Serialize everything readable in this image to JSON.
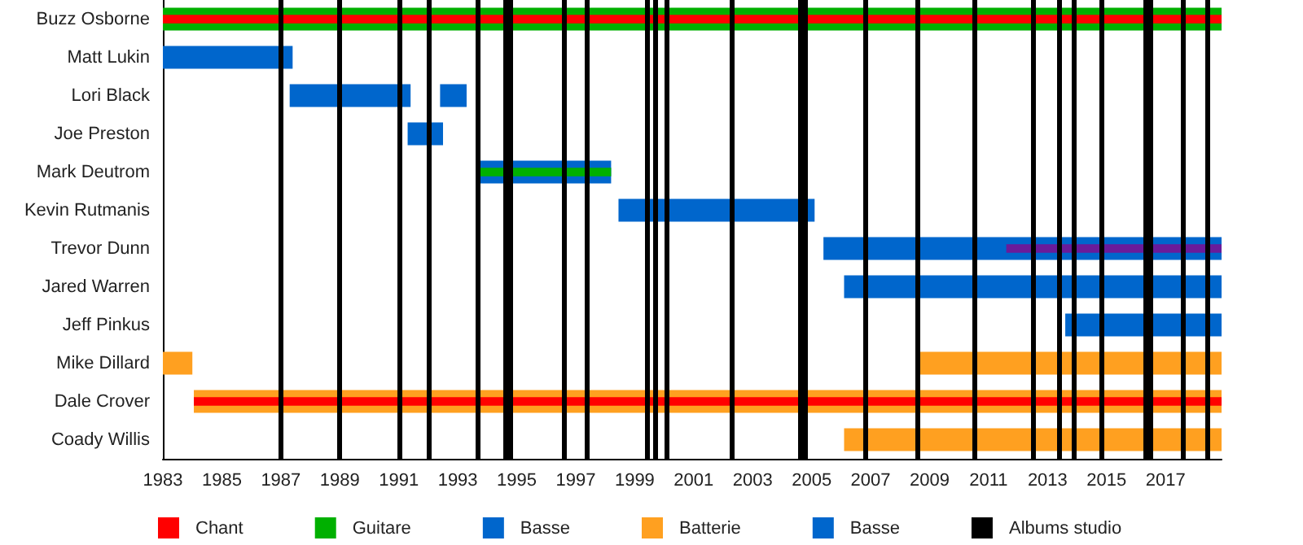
{
  "chart_data": {
    "type": "bar",
    "orientation": "horizontal",
    "legend": "bottom",
    "categories": [
      "Buzz Osborne",
      "Matt Lukin",
      "Lori Black",
      "Joe Preston",
      "Mark Deutrom",
      "Kevin Rutmanis",
      "Trevor Dunn",
      "Jared Warren",
      "Jeff Pinkus",
      "Mike Dillard",
      "Dale Crover",
      "Coady Willis"
    ],
    "xlim": [
      1983,
      2018.9
    ],
    "xticks": [
      1983,
      1985,
      1987,
      1989,
      1991,
      1993,
      1995,
      1997,
      1999,
      2001,
      2003,
      2005,
      2007,
      2009,
      2011,
      2013,
      2015,
      2017
    ],
    "series": [
      {
        "name": "Chant",
        "color": "#ff0000",
        "base": [
          1983,
          null,
          null,
          null,
          null,
          null,
          null,
          null,
          null,
          null,
          1984.05,
          null
        ],
        "values": [
          35.9,
          null,
          null,
          null,
          null,
          null,
          null,
          null,
          null,
          null,
          34.85,
          null
        ]
      },
      {
        "name": "Guitare",
        "color": "#00b000",
        "base": [
          1983,
          null,
          null,
          null,
          1993.65,
          null,
          null,
          null,
          null,
          null,
          null,
          null
        ],
        "values": [
          35.9,
          null,
          null,
          null,
          4.55,
          null,
          null,
          null,
          null,
          null,
          null,
          null
        ]
      },
      {
        "name": "Basse",
        "color": "#0066cc",
        "base": [
          null,
          1983,
          1987.3,
          1991.3,
          1993.65,
          1998.45,
          null,
          2006.1,
          2013.6,
          null,
          null,
          null
        ],
        "values": [
          null,
          4.4,
          4.1,
          1.2,
          4.55,
          6.65,
          null,
          12.8,
          5.3,
          null,
          null,
          null
        ]
      },
      {
        "name": "Batterie",
        "color": "#ffa020",
        "base": [
          null,
          null,
          null,
          null,
          null,
          null,
          null,
          null,
          null,
          1983,
          1984.05,
          2006.1
        ],
        "values": [
          null,
          null,
          null,
          null,
          null,
          null,
          null,
          null,
          null,
          1.0,
          34.85,
          12.8
        ]
      },
      {
        "name": "Basse",
        "color": "#0066cc",
        "base": [
          null,
          null,
          1992.4,
          null,
          null,
          null,
          null,
          null,
          null,
          null,
          null,
          null
        ],
        "values": [
          null,
          null,
          0.9,
          null,
          null,
          null,
          null,
          null,
          null,
          null,
          null,
          null
        ]
      },
      {
        "name": "Albums studio",
        "color": "#000000",
        "base": [
          null,
          null,
          null,
          null,
          null,
          null,
          null,
          null,
          null,
          null,
          null,
          null
        ],
        "values": [
          null,
          null,
          null,
          null,
          null,
          null,
          null,
          null,
          null,
          null,
          null,
          null
        ]
      },
      {
        "color": "#6a1b9a",
        "base": [
          null,
          null,
          null,
          null,
          null,
          null,
          2011.6,
          null,
          null,
          null,
          null,
          null
        ],
        "values": [
          null,
          null,
          null,
          null,
          null,
          null,
          7.3,
          null,
          null,
          null,
          null,
          null
        ]
      },
      {
        "color": "#0066cc",
        "base": [
          null,
          null,
          null,
          null,
          null,
          null,
          2005.4,
          null,
          null,
          null,
          null,
          null
        ],
        "values": [
          null,
          null,
          null,
          null,
          null,
          null,
          13.5,
          null,
          null,
          null,
          null,
          null
        ]
      },
      {
        "color": "#ffa020",
        "base": [
          null,
          null,
          null,
          null,
          null,
          null,
          null,
          null,
          null,
          2008.55,
          null,
          null
        ],
        "values": [
          null,
          null,
          null,
          null,
          null,
          null,
          null,
          null,
          null,
          10.35,
          null,
          null
        ]
      }
    ],
    "ref_lines": [
      {
        "axis": "x",
        "value": 1987.0,
        "color": "#000000"
      },
      {
        "axis": "x",
        "value": 1989.0,
        "color": "#000000"
      },
      {
        "axis": "x",
        "value": 1991.0,
        "color": "#000000"
      },
      {
        "axis": "x",
        "value": 1992.0,
        "color": "#000000"
      },
      {
        "axis": "x",
        "value": 1993.7,
        "color": "#000000"
      },
      {
        "axis": "x",
        "value": 1994.6,
        "color": "#000000"
      },
      {
        "axis": "x",
        "value": 1994.8,
        "color": "#000000"
      },
      {
        "axis": "x",
        "value": 1996.6,
        "color": "#000000"
      },
      {
        "axis": "x",
        "value": 1997.4,
        "color": "#000000"
      },
      {
        "axis": "x",
        "value": 1999.4,
        "color": "#000000"
      },
      {
        "axis": "x",
        "value": 1999.7,
        "color": "#000000"
      },
      {
        "axis": "x",
        "value": 2000.1,
        "color": "#000000"
      },
      {
        "axis": "x",
        "value": 2002.3,
        "color": "#000000"
      },
      {
        "axis": "x",
        "value": 2004.6,
        "color": "#000000"
      },
      {
        "axis": "x",
        "value": 2004.8,
        "color": "#000000"
      },
      {
        "axis": "x",
        "value": 2006.8,
        "color": "#000000"
      },
      {
        "axis": "x",
        "value": 2008.6,
        "color": "#000000"
      },
      {
        "axis": "x",
        "value": 2010.5,
        "color": "#000000"
      },
      {
        "axis": "x",
        "value": 2012.5,
        "color": "#000000"
      },
      {
        "axis": "x",
        "value": 2013.4,
        "color": "#000000"
      },
      {
        "axis": "x",
        "value": 2013.9,
        "color": "#000000"
      },
      {
        "axis": "x",
        "value": 2014.8,
        "color": "#000000"
      },
      {
        "axis": "x",
        "value": 2016.3,
        "color": "#000000"
      },
      {
        "axis": "x",
        "value": 2016.5,
        "color": "#000000"
      },
      {
        "axis": "x",
        "value": 2017.6,
        "color": "#000000"
      },
      {
        "axis": "x",
        "value": 2018.4,
        "color": "#000000"
      }
    ]
  }
}
